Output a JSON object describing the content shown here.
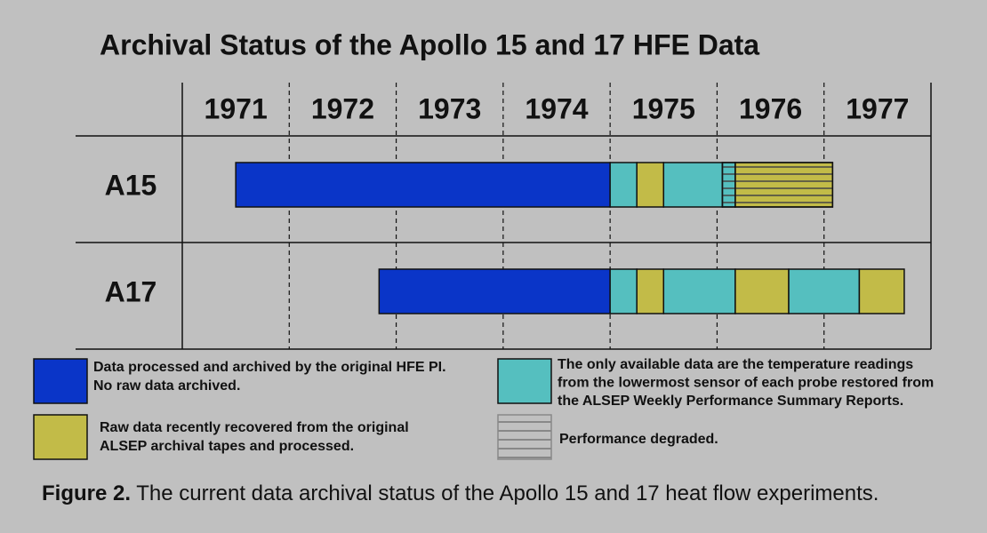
{
  "chart_data": {
    "type": "timeline",
    "title": "Archival Status of the Apollo 15 and 17 HFE Data",
    "categories": [
      "1971",
      "1972",
      "1973",
      "1974",
      "1975",
      "1976",
      "1977"
    ],
    "xlim": [
      1971,
      1978
    ],
    "legend": [
      {
        "color": "#0a35c8",
        "lines": [
          "Data processed and archived by the original HFE PI.",
          "No raw data archived."
        ]
      },
      {
        "color": "#55bfbf",
        "lines": [
          "The only available data are the temperature readings",
          "from the lowermost sensor of each probe restored from",
          "the ALSEP Weekly Performance Summary Reports."
        ]
      },
      {
        "color": "#c2bb48",
        "lines": [
          "Raw data recently recovered from the original",
          "ALSEP archival tapes and processed."
        ]
      },
      {
        "pattern": "hatch",
        "lines": [
          "Performance degraded."
        ]
      }
    ],
    "series": [
      {
        "name": "A15",
        "segments": [
          {
            "start": 1971.5,
            "end": 1975.0,
            "status": 0,
            "degraded": false
          },
          {
            "start": 1975.0,
            "end": 1975.25,
            "status": 1,
            "degraded": false
          },
          {
            "start": 1975.25,
            "end": 1975.5,
            "status": 2,
            "degraded": false
          },
          {
            "start": 1975.5,
            "end": 1976.05,
            "status": 1,
            "degraded": false
          },
          {
            "start": 1976.05,
            "end": 1976.17,
            "status": 1,
            "degraded": true
          },
          {
            "start": 1976.17,
            "end": 1977.08,
            "status": 2,
            "degraded": true
          }
        ]
      },
      {
        "name": "A17",
        "segments": [
          {
            "start": 1972.84,
            "end": 1975.0,
            "status": 0,
            "degraded": false
          },
          {
            "start": 1975.0,
            "end": 1975.25,
            "status": 1,
            "degraded": false
          },
          {
            "start": 1975.25,
            "end": 1975.5,
            "status": 2,
            "degraded": false
          },
          {
            "start": 1975.5,
            "end": 1976.17,
            "status": 1,
            "degraded": false
          },
          {
            "start": 1976.17,
            "end": 1976.67,
            "status": 2,
            "degraded": false
          },
          {
            "start": 1976.67,
            "end": 1977.33,
            "status": 1,
            "degraded": false
          },
          {
            "start": 1977.33,
            "end": 1977.75,
            "status": 2,
            "degraded": false
          }
        ]
      }
    ],
    "caption": {
      "label": "Figure 2.",
      "text": "The current data archival status of the Apollo 15 and 17 heat flow experiments."
    }
  }
}
